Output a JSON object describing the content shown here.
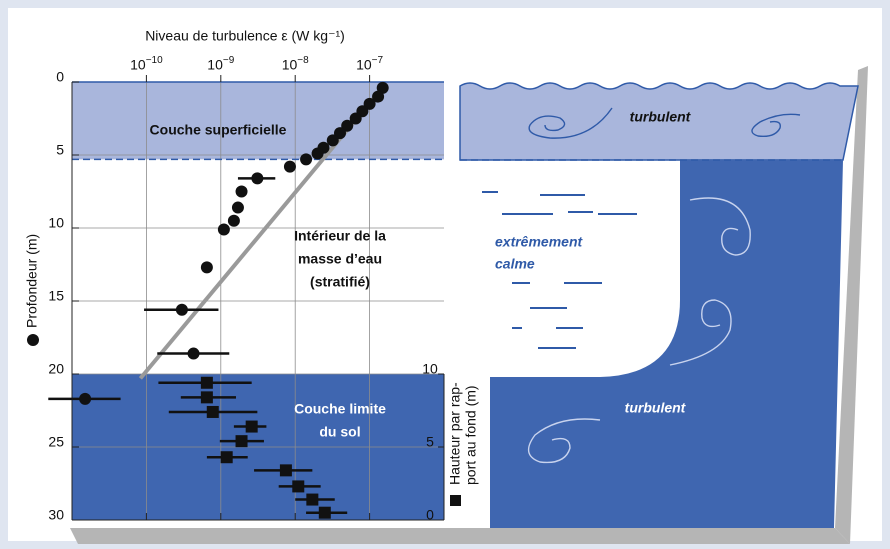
{
  "chart_data": {
    "type": "scatter",
    "xlabel": "Niveau de turbulence ε (W kg⁻¹)",
    "ylabel": "Profondeur (m)",
    "y2label": [
      "Hauteur par rap-",
      "port au fond (m)"
    ],
    "xscale": "log",
    "xlim": [
      1e-11,
      1e-06
    ],
    "xticks": [
      {
        "value": 1e-10,
        "label": "10−10"
      },
      {
        "value": 1e-09,
        "label": "10−9"
      },
      {
        "value": 1e-08,
        "label": "10−8"
      },
      {
        "value": 1e-07,
        "label": "10−7"
      }
    ],
    "ylim": [
      0,
      30
    ],
    "invert_y": true,
    "yticks": [
      0,
      5,
      10,
      15,
      20,
      25,
      30
    ],
    "y2lim": [
      0,
      10
    ],
    "y2ticks": [
      0,
      5,
      10
    ],
    "grid": true,
    "layers": [
      {
        "label": [
          "Couche superficielle"
        ],
        "range": [
          0,
          5.3
        ],
        "color": "#a9b6dc"
      },
      {
        "label": [
          "Intérieur de la",
          "masse d’eau",
          "(stratifié)"
        ]
      },
      {
        "label": [
          "Couche limite",
          "du sol"
        ],
        "range": [
          20,
          30
        ],
        "color": "#3f66b0"
      }
    ],
    "series": [
      {
        "marker": "circle",
        "color": "#111111",
        "x": [
          1.5e-07,
          1.3e-07,
          1e-07,
          8e-08,
          6.5e-08,
          5e-08,
          4e-08,
          3.2e-08,
          2.4e-08,
          2e-08,
          1.4e-08,
          8.5e-09,
          3.1e-09,
          1.9e-09,
          1.7e-09,
          1.5e-09,
          1.1e-09,
          6.5e-10,
          3e-10,
          4.3e-10,
          1.5e-11
        ],
        "y": [
          0.4,
          1.0,
          1.5,
          2.0,
          2.5,
          3.0,
          3.5,
          4.0,
          4.5,
          4.9,
          5.3,
          5.8,
          6.6,
          7.5,
          8.6,
          9.5,
          10.1,
          12.7,
          15.6,
          18.6,
          21.7
        ],
        "x_low": [
          null,
          null,
          null,
          null,
          null,
          null,
          null,
          null,
          null,
          null,
          null,
          null,
          1.7e-09,
          null,
          null,
          null,
          null,
          null,
          9.3e-11,
          1.4e-10,
          4.8e-12
        ],
        "x_high": [
          null,
          null,
          null,
          null,
          null,
          null,
          null,
          null,
          null,
          null,
          null,
          null,
          5.4e-09,
          null,
          null,
          null,
          null,
          null,
          9.3e-10,
          1.3e-09,
          4.5e-11
        ]
      },
      {
        "marker": "square",
        "color": "#111111",
        "axis": "y2",
        "x": [
          6.5e-10,
          6.5e-10,
          7.8e-10,
          2.6e-09,
          1.9e-09,
          1.2e-09,
          7.5e-09,
          1.1e-08,
          1.7e-08,
          2.5e-08
        ],
        "y": [
          9.4,
          8.4,
          7.4,
          6.4,
          5.4,
          4.3,
          3.4,
          2.3,
          1.4,
          0.5
        ],
        "x_low": [
          1.45e-10,
          2.9e-10,
          2e-10,
          1.5e-09,
          9.7e-10,
          6.5e-10,
          2.8e-09,
          6e-09,
          1e-08,
          1.4e-08
        ],
        "x_high": [
          2.6e-09,
          1.6e-09,
          3.1e-09,
          4.1e-09,
          3.8e-09,
          2.3e-09,
          1.7e-08,
          2.2e-08,
          3.4e-08,
          5e-08
        ]
      },
      {
        "marker": "line",
        "color": "#9a9a9a",
        "x": [
          8.3e-11,
          1.6e-07
        ],
        "y": [
          20.3,
          0.2
        ]
      }
    ]
  },
  "schematic": {
    "labels": [
      [
        "turbulent"
      ],
      [
        "extrêmement",
        "calme"
      ],
      [
        "turbulent"
      ]
    ]
  }
}
